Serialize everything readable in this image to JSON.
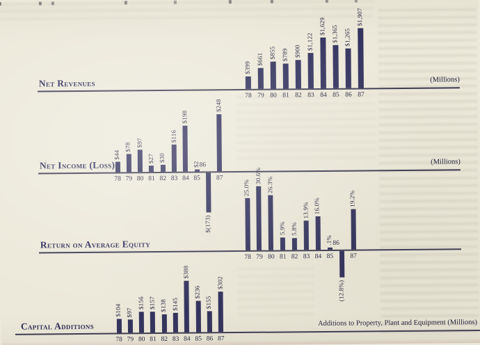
{
  "page": {
    "background": "#ece9da",
    "bar_color": "#32315d",
    "title_color": "#2c2b58",
    "axis_color": "#3b3a50"
  },
  "chart_data": [
    {
      "type": "bar",
      "title": "Net Revenues",
      "unit_label": "(Millions)",
      "categories": [
        "78",
        "79",
        "80",
        "81",
        "82",
        "83",
        "84",
        "85",
        "86",
        "87"
      ],
      "values": [
        399,
        661,
        855,
        789,
        900,
        1122,
        1629,
        1365,
        1265,
        1907
      ],
      "value_labels": [
        "$399",
        "$661",
        "$855",
        "$789",
        "$900",
        "$1,122",
        "$1,629",
        "$1,365",
        "$1,265",
        "$1,907"
      ],
      "grid": false,
      "legend": "none",
      "ylim": [
        0,
        1907
      ]
    },
    {
      "type": "bar",
      "title": "Net Income (Loss)",
      "unit_label": "(Millions)",
      "categories": [
        "78",
        "79",
        "80",
        "81",
        "82",
        "83",
        "84",
        "85",
        "86",
        "87"
      ],
      "values": [
        44,
        78,
        97,
        27,
        30,
        116,
        198,
        2,
        -173,
        248
      ],
      "value_labels": [
        "$44",
        "$78",
        "$97",
        "$27",
        "$30",
        "$116",
        "$198",
        "$2",
        "$(173)",
        "$248"
      ],
      "grid": false,
      "legend": "none",
      "ylim": [
        -173,
        248
      ]
    },
    {
      "type": "bar",
      "title": "Return on Average Equity",
      "unit_label": "",
      "categories": [
        "78",
        "79",
        "80",
        "81",
        "82",
        "83",
        "84",
        "85",
        "86",
        "87"
      ],
      "values": [
        25.0,
        30.6,
        26.3,
        5.9,
        5.8,
        13.9,
        16.0,
        0.1,
        -12.8,
        19.2
      ],
      "value_labels": [
        "25.0%",
        "30.6%",
        "26.3%",
        "5.9%",
        "5.8%",
        "13.9%",
        "16.0%",
        ".1%",
        "(12.8%)",
        "19.2%"
      ],
      "grid": false,
      "legend": "none",
      "ylim": [
        -12.8,
        30.6
      ]
    },
    {
      "type": "bar",
      "title": "Capital Additions",
      "unit_label": "Additions to Property, Plant and Equipment (Millions)",
      "categories": [
        "78",
        "79",
        "80",
        "81",
        "82",
        "83",
        "84",
        "85",
        "86",
        "87"
      ],
      "values": [
        104,
        97,
        156,
        157,
        138,
        145,
        388,
        236,
        155,
        302
      ],
      "value_labels": [
        "$104",
        "$97",
        "$156",
        "$157",
        "$138",
        "$145",
        "$388",
        "$236",
        "$155",
        "$302"
      ],
      "grid": false,
      "legend": "none",
      "ylim": [
        0,
        388
      ]
    }
  ]
}
